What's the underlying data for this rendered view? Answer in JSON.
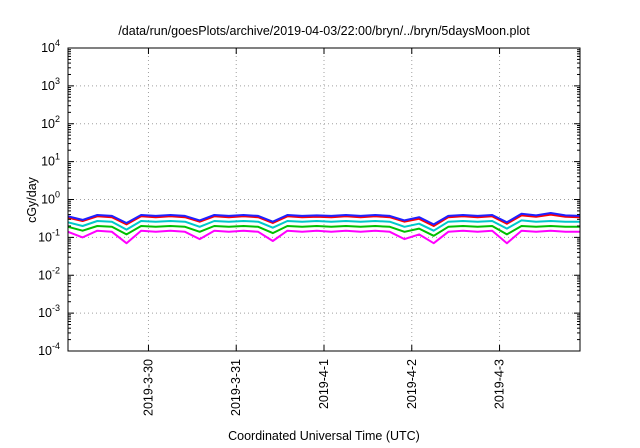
{
  "chart_data": {
    "type": "line",
    "title": "/data/run/goesPlots/archive/2019-04-03/22:00/bryn/../bryn/5daysMoon.plot",
    "xlabel": "Coordinated Universal Time (UTC)",
    "ylabel": "cGy/day",
    "yscale": "log",
    "ylim": [
      0.0001,
      10000
    ],
    "xlim": [
      "2019-03-29T02:00",
      "2019-04-03T22:00"
    ],
    "grid": true,
    "legend": "none",
    "x_ticks": [
      {
        "label": "2019-3-30",
        "time": "2019-03-30T00:00"
      },
      {
        "label": "2019-3-31",
        "time": "2019-03-31T00:00"
      },
      {
        "label": "2019-4-1",
        "time": "2019-04-01T00:00"
      },
      {
        "label": "2019-4-2",
        "time": "2019-04-02T00:00"
      },
      {
        "label": "2019-4-3",
        "time": "2019-04-03T00:00"
      }
    ],
    "y_ticks": [
      {
        "base": "10",
        "exp": "4",
        "value": 10000
      },
      {
        "base": "10",
        "exp": "3",
        "value": 1000
      },
      {
        "base": "10",
        "exp": "2",
        "value": 100
      },
      {
        "base": "10",
        "exp": "1",
        "value": 10
      },
      {
        "base": "10",
        "exp": "0",
        "value": 1
      },
      {
        "base": "10",
        "exp": "-1",
        "value": 0.1
      },
      {
        "base": "10",
        "exp": "-2",
        "value": 0.01
      },
      {
        "base": "10",
        "exp": "-3",
        "value": 0.001
      },
      {
        "base": "10",
        "exp": "-4",
        "value": 0.0001
      }
    ],
    "series": [
      {
        "color": "#ff00ff",
        "values": [
          [
            "2019-03-29T02:00",
            0.14
          ],
          [
            "2019-03-29T06:00",
            0.1
          ],
          [
            "2019-03-29T10:00",
            0.15
          ],
          [
            "2019-03-29T14:00",
            0.14
          ],
          [
            "2019-03-29T18:00",
            0.07
          ],
          [
            "2019-03-29T22:00",
            0.15
          ],
          [
            "2019-03-30T02:00",
            0.14
          ],
          [
            "2019-03-30T06:00",
            0.15
          ],
          [
            "2019-03-30T10:00",
            0.14
          ],
          [
            "2019-03-30T14:00",
            0.09
          ],
          [
            "2019-03-30T18:00",
            0.15
          ],
          [
            "2019-03-30T22:00",
            0.14
          ],
          [
            "2019-03-31T02:00",
            0.15
          ],
          [
            "2019-03-31T06:00",
            0.14
          ],
          [
            "2019-03-31T10:00",
            0.08
          ],
          [
            "2019-03-31T14:00",
            0.15
          ],
          [
            "2019-03-31T18:00",
            0.14
          ],
          [
            "2019-03-31T22:00",
            0.15
          ],
          [
            "2019-04-01T02:00",
            0.14
          ],
          [
            "2019-04-01T06:00",
            0.15
          ],
          [
            "2019-04-01T10:00",
            0.14
          ],
          [
            "2019-04-01T14:00",
            0.15
          ],
          [
            "2019-04-01T18:00",
            0.14
          ],
          [
            "2019-04-01T22:00",
            0.09
          ],
          [
            "2019-04-02T02:00",
            0.12
          ],
          [
            "2019-04-02T06:00",
            0.07
          ],
          [
            "2019-04-02T10:00",
            0.14
          ],
          [
            "2019-04-02T14:00",
            0.15
          ],
          [
            "2019-04-02T18:00",
            0.14
          ],
          [
            "2019-04-02T22:00",
            0.15
          ],
          [
            "2019-04-03T02:00",
            0.07
          ],
          [
            "2019-04-03T06:00",
            0.15
          ],
          [
            "2019-04-03T10:00",
            0.14
          ],
          [
            "2019-04-03T14:00",
            0.15
          ],
          [
            "2019-04-03T18:00",
            0.14
          ],
          [
            "2019-04-03T22:00",
            0.14
          ]
        ]
      },
      {
        "color": "#00c000",
        "values": [
          [
            "2019-03-29T02:00",
            0.19
          ],
          [
            "2019-03-29T06:00",
            0.15
          ],
          [
            "2019-03-29T10:00",
            0.2
          ],
          [
            "2019-03-29T14:00",
            0.19
          ],
          [
            "2019-03-29T18:00",
            0.12
          ],
          [
            "2019-03-29T22:00",
            0.2
          ],
          [
            "2019-03-30T02:00",
            0.19
          ],
          [
            "2019-03-30T06:00",
            0.2
          ],
          [
            "2019-03-30T10:00",
            0.19
          ],
          [
            "2019-03-30T14:00",
            0.14
          ],
          [
            "2019-03-30T18:00",
            0.2
          ],
          [
            "2019-03-30T22:00",
            0.19
          ],
          [
            "2019-03-31T02:00",
            0.2
          ],
          [
            "2019-03-31T06:00",
            0.19
          ],
          [
            "2019-03-31T10:00",
            0.13
          ],
          [
            "2019-03-31T14:00",
            0.2
          ],
          [
            "2019-03-31T18:00",
            0.19
          ],
          [
            "2019-03-31T22:00",
            0.2
          ],
          [
            "2019-04-01T02:00",
            0.19
          ],
          [
            "2019-04-01T06:00",
            0.2
          ],
          [
            "2019-04-01T10:00",
            0.19
          ],
          [
            "2019-04-01T14:00",
            0.2
          ],
          [
            "2019-04-01T18:00",
            0.19
          ],
          [
            "2019-04-01T22:00",
            0.14
          ],
          [
            "2019-04-02T02:00",
            0.17
          ],
          [
            "2019-04-02T06:00",
            0.11
          ],
          [
            "2019-04-02T10:00",
            0.19
          ],
          [
            "2019-04-02T14:00",
            0.2
          ],
          [
            "2019-04-02T18:00",
            0.19
          ],
          [
            "2019-04-02T22:00",
            0.2
          ],
          [
            "2019-04-03T02:00",
            0.12
          ],
          [
            "2019-04-03T06:00",
            0.2
          ],
          [
            "2019-04-03T10:00",
            0.19
          ],
          [
            "2019-04-03T14:00",
            0.2
          ],
          [
            "2019-04-03T18:00",
            0.19
          ],
          [
            "2019-04-03T22:00",
            0.19
          ]
        ]
      },
      {
        "color": "#00c8c8",
        "values": [
          [
            "2019-03-29T02:00",
            0.25
          ],
          [
            "2019-03-29T06:00",
            0.2
          ],
          [
            "2019-03-29T10:00",
            0.27
          ],
          [
            "2019-03-29T14:00",
            0.26
          ],
          [
            "2019-03-29T18:00",
            0.16
          ],
          [
            "2019-03-29T22:00",
            0.27
          ],
          [
            "2019-03-30T02:00",
            0.26
          ],
          [
            "2019-03-30T06:00",
            0.27
          ],
          [
            "2019-03-30T10:00",
            0.26
          ],
          [
            "2019-03-30T14:00",
            0.19
          ],
          [
            "2019-03-30T18:00",
            0.27
          ],
          [
            "2019-03-30T22:00",
            0.26
          ],
          [
            "2019-03-31T02:00",
            0.27
          ],
          [
            "2019-03-31T06:00",
            0.26
          ],
          [
            "2019-03-31T10:00",
            0.18
          ],
          [
            "2019-03-31T14:00",
            0.27
          ],
          [
            "2019-03-31T18:00",
            0.26
          ],
          [
            "2019-03-31T22:00",
            0.27
          ],
          [
            "2019-04-01T02:00",
            0.26
          ],
          [
            "2019-04-01T06:00",
            0.27
          ],
          [
            "2019-04-01T10:00",
            0.26
          ],
          [
            "2019-04-01T14:00",
            0.27
          ],
          [
            "2019-04-01T18:00",
            0.26
          ],
          [
            "2019-04-01T22:00",
            0.19
          ],
          [
            "2019-04-02T02:00",
            0.23
          ],
          [
            "2019-04-02T06:00",
            0.15
          ],
          [
            "2019-04-02T10:00",
            0.26
          ],
          [
            "2019-04-02T14:00",
            0.27
          ],
          [
            "2019-04-02T18:00",
            0.26
          ],
          [
            "2019-04-02T22:00",
            0.27
          ],
          [
            "2019-04-03T02:00",
            0.17
          ],
          [
            "2019-04-03T06:00",
            0.28
          ],
          [
            "2019-04-03T10:00",
            0.26
          ],
          [
            "2019-04-03T14:00",
            0.27
          ],
          [
            "2019-04-03T18:00",
            0.26
          ],
          [
            "2019-04-03T22:00",
            0.26
          ]
        ]
      },
      {
        "color": "#ff0000",
        "values": [
          [
            "2019-03-29T02:00",
            0.33
          ],
          [
            "2019-03-29T06:00",
            0.27
          ],
          [
            "2019-03-29T10:00",
            0.36
          ],
          [
            "2019-03-29T14:00",
            0.34
          ],
          [
            "2019-03-29T18:00",
            0.22
          ],
          [
            "2019-03-29T22:00",
            0.36
          ],
          [
            "2019-03-30T02:00",
            0.34
          ],
          [
            "2019-03-30T06:00",
            0.36
          ],
          [
            "2019-03-30T10:00",
            0.34
          ],
          [
            "2019-03-30T14:00",
            0.26
          ],
          [
            "2019-03-30T18:00",
            0.36
          ],
          [
            "2019-03-30T22:00",
            0.34
          ],
          [
            "2019-03-31T02:00",
            0.36
          ],
          [
            "2019-03-31T06:00",
            0.34
          ],
          [
            "2019-03-31T10:00",
            0.24
          ],
          [
            "2019-03-31T14:00",
            0.36
          ],
          [
            "2019-03-31T18:00",
            0.34
          ],
          [
            "2019-03-31T22:00",
            0.35
          ],
          [
            "2019-04-01T02:00",
            0.34
          ],
          [
            "2019-04-01T06:00",
            0.36
          ],
          [
            "2019-04-01T10:00",
            0.34
          ],
          [
            "2019-04-01T14:00",
            0.36
          ],
          [
            "2019-04-01T18:00",
            0.34
          ],
          [
            "2019-04-01T22:00",
            0.26
          ],
          [
            "2019-04-02T02:00",
            0.31
          ],
          [
            "2019-04-02T06:00",
            0.2
          ],
          [
            "2019-04-02T10:00",
            0.34
          ],
          [
            "2019-04-02T14:00",
            0.36
          ],
          [
            "2019-04-02T18:00",
            0.34
          ],
          [
            "2019-04-02T22:00",
            0.36
          ],
          [
            "2019-04-03T02:00",
            0.23
          ],
          [
            "2019-04-03T06:00",
            0.38
          ],
          [
            "2019-04-03T10:00",
            0.35
          ],
          [
            "2019-04-03T14:00",
            0.4
          ],
          [
            "2019-04-03T18:00",
            0.35
          ],
          [
            "2019-04-03T22:00",
            0.34
          ]
        ]
      },
      {
        "color": "#2020ff",
        "values": [
          [
            "2019-03-29T02:00",
            0.36
          ],
          [
            "2019-03-29T06:00",
            0.29
          ],
          [
            "2019-03-29T10:00",
            0.39
          ],
          [
            "2019-03-29T14:00",
            0.37
          ],
          [
            "2019-03-29T18:00",
            0.24
          ],
          [
            "2019-03-29T22:00",
            0.39
          ],
          [
            "2019-03-30T02:00",
            0.37
          ],
          [
            "2019-03-30T06:00",
            0.39
          ],
          [
            "2019-03-30T10:00",
            0.37
          ],
          [
            "2019-03-30T14:00",
            0.28
          ],
          [
            "2019-03-30T18:00",
            0.39
          ],
          [
            "2019-03-30T22:00",
            0.37
          ],
          [
            "2019-03-31T02:00",
            0.39
          ],
          [
            "2019-03-31T06:00",
            0.37
          ],
          [
            "2019-03-31T10:00",
            0.26
          ],
          [
            "2019-03-31T14:00",
            0.39
          ],
          [
            "2019-03-31T18:00",
            0.37
          ],
          [
            "2019-03-31T22:00",
            0.38
          ],
          [
            "2019-04-01T02:00",
            0.37
          ],
          [
            "2019-04-01T06:00",
            0.39
          ],
          [
            "2019-04-01T10:00",
            0.37
          ],
          [
            "2019-04-01T14:00",
            0.39
          ],
          [
            "2019-04-01T18:00",
            0.37
          ],
          [
            "2019-04-01T22:00",
            0.28
          ],
          [
            "2019-04-02T02:00",
            0.34
          ],
          [
            "2019-04-02T06:00",
            0.22
          ],
          [
            "2019-04-02T10:00",
            0.37
          ],
          [
            "2019-04-02T14:00",
            0.39
          ],
          [
            "2019-04-02T18:00",
            0.37
          ],
          [
            "2019-04-02T22:00",
            0.39
          ],
          [
            "2019-04-03T02:00",
            0.25
          ],
          [
            "2019-04-03T06:00",
            0.42
          ],
          [
            "2019-04-03T10:00",
            0.38
          ],
          [
            "2019-04-03T14:00",
            0.44
          ],
          [
            "2019-04-03T18:00",
            0.38
          ],
          [
            "2019-04-03T22:00",
            0.37
          ]
        ]
      }
    ]
  }
}
